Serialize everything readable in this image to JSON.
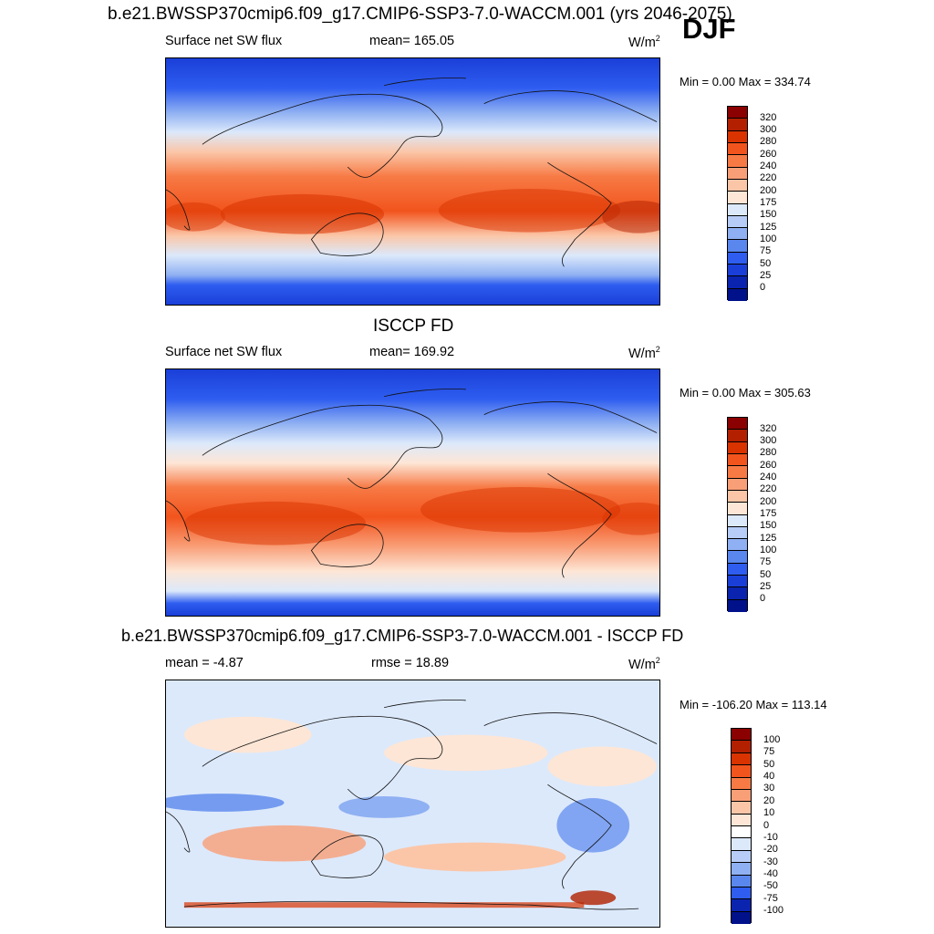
{
  "season": "DJF",
  "panels": [
    {
      "title": "b.e21.BWSSP370cmip6.f09_g17.CMIP6-SSP3-7.0-WACCM.001 (yrs 2046-2075)",
      "left_label": "Surface net SW flux",
      "center_label": "mean= 165.05",
      "units_base": "W/m",
      "units_exp": "2",
      "minmax": "Min =   0.00 Max = 334.74",
      "colorbar": {
        "labels": [
          "320",
          "300",
          "280",
          "260",
          "240",
          "220",
          "200",
          "175",
          "150",
          "125",
          "100",
          "75",
          "50",
          "25",
          "0"
        ],
        "colors": [
          "#8b0000",
          "#b22000",
          "#d93300",
          "#f2541d",
          "#f77a45",
          "#f99f78",
          "#fbc6a8",
          "#fde6d6",
          "#dce9fb",
          "#b7cdf7",
          "#8fb0f2",
          "#5a87ee",
          "#2e5df0",
          "#1a3fd8",
          "#0a24b0",
          "#00118a"
        ]
      }
    },
    {
      "title": "ISCCP FD",
      "left_label": "Surface net SW flux",
      "center_label": "mean= 169.92",
      "units_base": "W/m",
      "units_exp": "2",
      "minmax": "Min =   0.00 Max = 305.63",
      "colorbar": {
        "labels": [
          "320",
          "300",
          "280",
          "260",
          "240",
          "220",
          "200",
          "175",
          "150",
          "125",
          "100",
          "75",
          "50",
          "25",
          "0"
        ],
        "colors": [
          "#8b0000",
          "#b22000",
          "#d93300",
          "#f2541d",
          "#f77a45",
          "#f99f78",
          "#fbc6a8",
          "#fde6d6",
          "#dce9fb",
          "#b7cdf7",
          "#8fb0f2",
          "#5a87ee",
          "#2e5df0",
          "#1a3fd8",
          "#0a24b0",
          "#00118a"
        ]
      }
    },
    {
      "title": "b.e21.BWSSP370cmip6.f09_g17.CMIP6-SSP3-7.0-WACCM.001 - ISCCP FD",
      "left_label": "mean =  -4.87",
      "center_label": "rmse =  18.89",
      "units_base": "W/m",
      "units_exp": "2",
      "minmax": "Min = -106.20 Max = 113.14",
      "colorbar": {
        "labels": [
          "100",
          "75",
          "50",
          "40",
          "30",
          "20",
          "10",
          "0",
          "-10",
          "-20",
          "-30",
          "-40",
          "-50",
          "-75",
          "-100"
        ],
        "colors": [
          "#8b0000",
          "#b22000",
          "#d93300",
          "#f2541d",
          "#f77a45",
          "#f99f78",
          "#fbc6a8",
          "#fde6d6",
          "#ffffff",
          "#dce9fb",
          "#b7cdf7",
          "#8fb0f2",
          "#5a87ee",
          "#2e5df0",
          "#0a24b0",
          "#00118a"
        ]
      }
    }
  ]
}
